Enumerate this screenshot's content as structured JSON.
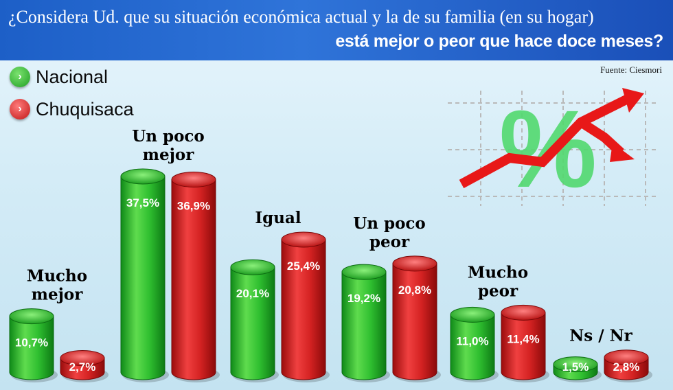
{
  "title": {
    "line1": "¿Considera Ud. que su situación económica actual y la de su familia (en su hogar)",
    "line2": "está mejor o peor que hace doce meses?"
  },
  "source": "Fuente: Ciesmori",
  "colors": {
    "nacional": "#22b32e",
    "chuquisaca": "#d61f1f",
    "header": "#1d5fc7"
  },
  "legend": [
    {
      "label": "Nacional",
      "color": "#22b32e",
      "icon": "chevron-right-icon"
    },
    {
      "label": "Chuquisaca",
      "color": "#d61f1f",
      "icon": "chevron-right-icon"
    }
  ],
  "decoration": {
    "symbol": "%"
  },
  "chart_data": {
    "type": "bar",
    "title": "¿Considera Ud. que su situación económica actual y la de su familia (en su hogar) está mejor o peor que hace doce meses?",
    "categories": [
      [
        "Mucho",
        "mejor"
      ],
      [
        "Un poco",
        "mejor"
      ],
      [
        "Igual"
      ],
      [
        "Un poco",
        "peor"
      ],
      [
        "Mucho",
        "peor"
      ],
      [
        "Ns / Nr"
      ]
    ],
    "series": [
      {
        "name": "Nacional",
        "values": [
          10.7,
          37.5,
          20.1,
          19.2,
          11.0,
          1.5
        ],
        "labels": [
          "10,7%",
          "37,5%",
          "20,1%",
          "19,2%",
          "11,0%",
          "1,5%"
        ]
      },
      {
        "name": "Chuquisaca",
        "values": [
          2.7,
          36.9,
          25.4,
          20.8,
          11.4,
          2.8
        ],
        "labels": [
          "2,7%",
          "36,9%",
          "25,4%",
          "20,8%",
          "11,4%",
          "2,8%"
        ]
      }
    ],
    "unit": "%",
    "legend_position": "top-left",
    "grid": false
  }
}
